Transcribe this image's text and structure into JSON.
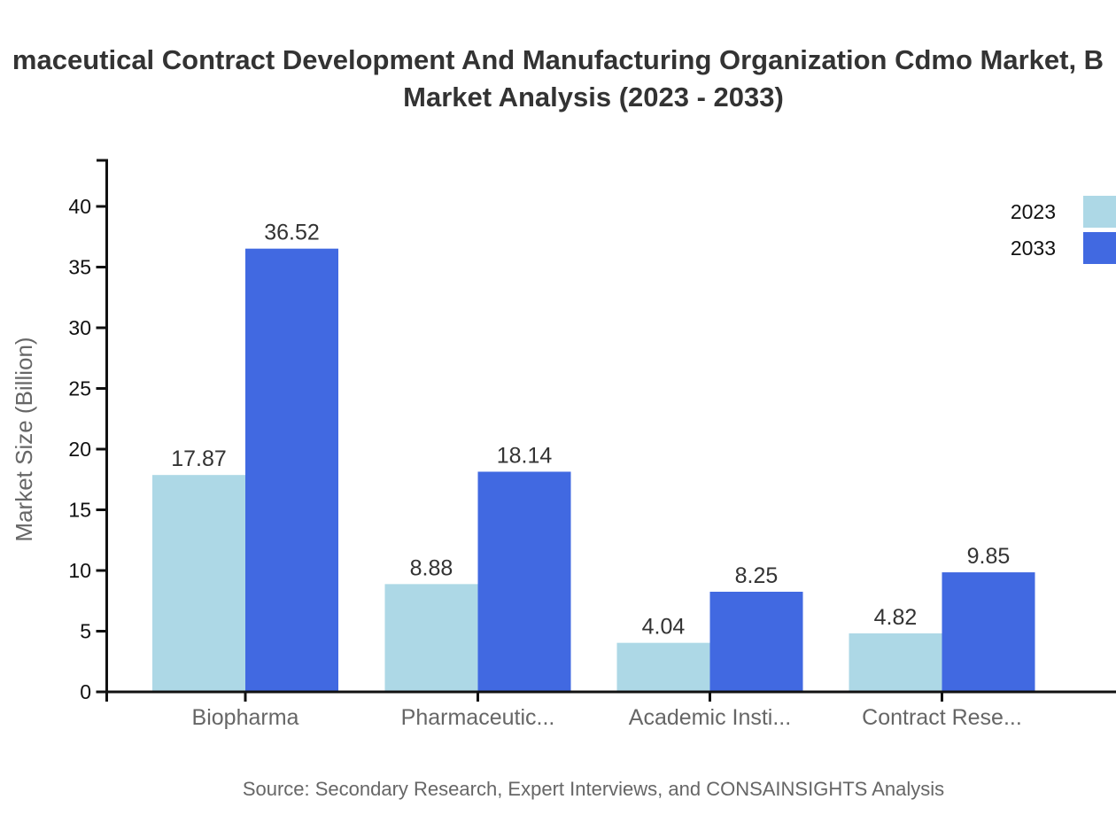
{
  "title": {
    "line1": "maceutical Contract Development And Manufacturing Organization Cdmo Market, B",
    "line2": "Market Analysis (2023 - 2033)"
  },
  "source": "Source: Secondary Research, Expert Interviews, and CONSAINSIGHTS Analysis",
  "colors": {
    "series_2023": "#ADD8E6",
    "series_2033": "#4169E1",
    "axis": "#111111",
    "tick_label": "#111111",
    "category_label": "#666666",
    "value_label": "#333333",
    "axis_title": "#666666"
  },
  "chart_data": {
    "type": "bar",
    "title": "maceutical Contract Development And Manufacturing Organization Cdmo Market, B Market Analysis (2023 - 2033)",
    "categories": [
      "Biopharma",
      "Pharmaceutic...",
      "Academic Insti...",
      "Contract Rese..."
    ],
    "series": [
      {
        "name": "2023",
        "color": "#ADD8E6",
        "values": [
          17.87,
          8.88,
          4.04,
          4.82
        ]
      },
      {
        "name": "2033",
        "color": "#4169E1",
        "values": [
          36.52,
          18.14,
          8.25,
          9.85
        ]
      }
    ],
    "xlabel": "",
    "ylabel": "Market Size (Billion)",
    "ylim": [
      0,
      40
    ],
    "yticks": [
      0,
      5,
      10,
      15,
      20,
      25,
      30,
      35,
      40
    ],
    "grid": false,
    "value_labels": true,
    "legend_position": "top-right",
    "legend": [
      {
        "label": "2023",
        "color": "#ADD8E6"
      },
      {
        "label": "2033",
        "color": "#4169E1"
      }
    ]
  }
}
